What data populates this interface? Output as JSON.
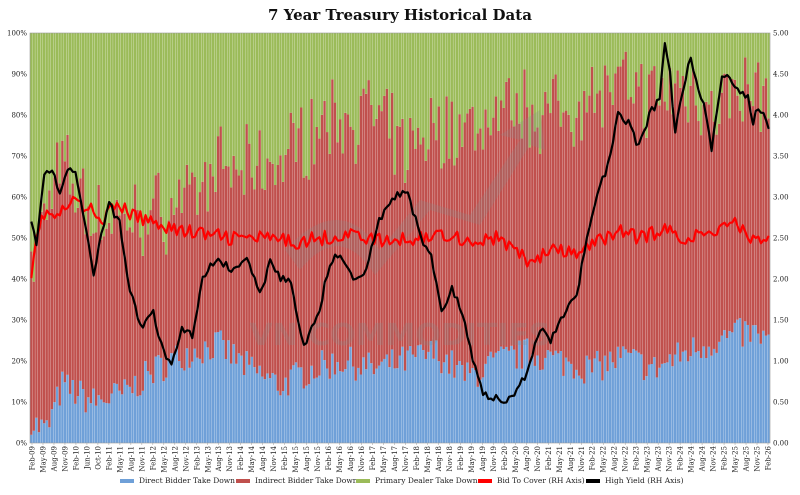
{
  "chart_data": {
    "type": "bar",
    "title": "7 Year Treasury Historical Data",
    "left_axis": {
      "ticks": [
        "0%",
        "10%",
        "20%",
        "30%",
        "40%",
        "50%",
        "60%",
        "70%",
        "80%",
        "90%",
        "100%"
      ],
      "range": [
        0,
        100
      ]
    },
    "right_axis": {
      "ticks": [
        "0.00",
        "0.50",
        "1.00",
        "1.50",
        "2.00",
        "2.50",
        "3.00",
        "3.50",
        "4.00",
        "4.50",
        "5.00"
      ],
      "range": [
        0,
        5
      ]
    },
    "x_tick_labels": [
      "Feb-09",
      "May-09",
      "Aug-09",
      "Nov-09",
      "Feb-10",
      "Jun-10",
      "Oct-10",
      "Feb-11",
      "May-11",
      "Aug-11",
      "Nov-11",
      "Feb-12",
      "May-12",
      "Aug-12",
      "Nov-12",
      "Feb-13",
      "May-13",
      "Aug-13",
      "Nov-13",
      "Feb-14",
      "May-14",
      "Aug-14",
      "Nov-14",
      "Feb-15",
      "May-15",
      "Aug-15",
      "Nov-15",
      "Feb-16",
      "May-16",
      "Aug-16",
      "Nov-16",
      "Feb-17",
      "May-17",
      "Aug-17",
      "Nov-17",
      "Feb-18",
      "May-18",
      "Aug-18",
      "Nov-18",
      "Feb-19",
      "May-19",
      "Aug-19",
      "Nov-19",
      "Feb-20",
      "May-20",
      "Aug-20",
      "Nov-20",
      "Feb-21",
      "May-21",
      "Aug-21",
      "Nov-21",
      "Feb-22",
      "May-22",
      "Aug-22",
      "Nov-22",
      "Feb-23",
      "May-23",
      "Aug-23",
      "Nov-23",
      "Feb-24",
      "May-24",
      "Aug-24",
      "Nov-24",
      "Feb-25",
      "May-25",
      "Aug-25",
      "Nov-25",
      "Feb-26"
    ],
    "watermark": "VN COMMODITIES",
    "legend": [
      {
        "label": "Direct Bidder Take Down",
        "color": "#6fa0d8"
      },
      {
        "label": "Indirect Bidder Take Down",
        "color": "#c0504d"
      },
      {
        "label": "Primary Dealer Take Down",
        "color": "#9bbb59"
      },
      {
        "label": "Bid To Cover (RH Axis)",
        "color": "#ff0000"
      },
      {
        "label": "High Yield (RH Axis)",
        "color": "#000000"
      }
    ],
    "series": {
      "direct_pct_anchors": [
        [
          0,
          5
        ],
        [
          6,
          3
        ],
        [
          12,
          14
        ],
        [
          24,
          10
        ],
        [
          36,
          12
        ],
        [
          48,
          18
        ],
        [
          60,
          22
        ],
        [
          72,
          24
        ],
        [
          84,
          18
        ],
        [
          96,
          14
        ],
        [
          108,
          18
        ],
        [
          120,
          20
        ],
        [
          132,
          18
        ],
        [
          144,
          20
        ],
        [
          156,
          22
        ],
        [
          168,
          16
        ],
        [
          180,
          20
        ],
        [
          192,
          22
        ],
        [
          204,
          20
        ],
        [
          216,
          18
        ],
        [
          228,
          21
        ],
        [
          240,
          18
        ],
        [
          252,
          22
        ],
        [
          264,
          25
        ],
        [
          276,
          27
        ],
        [
          284,
          25
        ]
      ],
      "indirect_pct_anchors": [
        [
          0,
          38
        ],
        [
          4,
          50
        ],
        [
          8,
          56
        ],
        [
          14,
          52
        ],
        [
          24,
          45
        ],
        [
          36,
          42
        ],
        [
          48,
          38
        ],
        [
          60,
          38
        ],
        [
          72,
          42
        ],
        [
          84,
          48
        ],
        [
          96,
          55
        ],
        [
          108,
          58
        ],
        [
          120,
          60
        ],
        [
          132,
          62
        ],
        [
          144,
          50
        ],
        [
          156,
          55
        ],
        [
          168,
          60
        ],
        [
          180,
          60
        ],
        [
          192,
          60
        ],
        [
          204,
          60
        ],
        [
          216,
          68
        ],
        [
          228,
          65
        ],
        [
          240,
          66
        ],
        [
          252,
          65
        ],
        [
          264,
          58
        ],
        [
          276,
          58
        ],
        [
          284,
          60
        ]
      ],
      "bid_to_cover_anchors": [
        [
          0,
          2.1
        ],
        [
          2,
          2.55
        ],
        [
          5,
          2.8
        ],
        [
          10,
          2.75
        ],
        [
          16,
          2.95
        ],
        [
          22,
          2.85
        ],
        [
          28,
          2.75
        ],
        [
          34,
          2.9
        ],
        [
          40,
          2.75
        ],
        [
          48,
          2.7
        ],
        [
          56,
          2.6
        ],
        [
          66,
          2.55
        ],
        [
          76,
          2.5
        ],
        [
          88,
          2.5
        ],
        [
          100,
          2.45
        ],
        [
          112,
          2.5
        ],
        [
          124,
          2.55
        ],
        [
          136,
          2.45
        ],
        [
          148,
          2.5
        ],
        [
          160,
          2.55
        ],
        [
          170,
          2.45
        ],
        [
          180,
          2.5
        ],
        [
          186,
          2.35
        ],
        [
          192,
          2.2
        ],
        [
          200,
          2.35
        ],
        [
          210,
          2.3
        ],
        [
          218,
          2.45
        ],
        [
          226,
          2.6
        ],
        [
          234,
          2.5
        ],
        [
          244,
          2.6
        ],
        [
          252,
          2.5
        ],
        [
          262,
          2.55
        ],
        [
          270,
          2.75
        ],
        [
          276,
          2.5
        ],
        [
          284,
          2.5
        ]
      ],
      "high_yield_anchors": [
        [
          0,
          2.75
        ],
        [
          2,
          2.4
        ],
        [
          5,
          3.3
        ],
        [
          8,
          3.35
        ],
        [
          11,
          3.0
        ],
        [
          14,
          3.3
        ],
        [
          17,
          3.3
        ],
        [
          20,
          2.8
        ],
        [
          24,
          2.0
        ],
        [
          27,
          2.6
        ],
        [
          30,
          2.9
        ],
        [
          34,
          2.7
        ],
        [
          37,
          2.0
        ],
        [
          42,
          1.4
        ],
        [
          47,
          1.6
        ],
        [
          50,
          1.2
        ],
        [
          54,
          0.95
        ],
        [
          58,
          1.4
        ],
        [
          62,
          1.3
        ],
        [
          66,
          2.0
        ],
        [
          70,
          2.2
        ],
        [
          74,
          2.2
        ],
        [
          78,
          2.1
        ],
        [
          83,
          2.3
        ],
        [
          88,
          1.8
        ],
        [
          92,
          2.2
        ],
        [
          96,
          2.0
        ],
        [
          100,
          1.95
        ],
        [
          105,
          1.2
        ],
        [
          110,
          1.5
        ],
        [
          115,
          2.2
        ],
        [
          119,
          2.3
        ],
        [
          124,
          2.0
        ],
        [
          128,
          2.05
        ],
        [
          134,
          2.7
        ],
        [
          140,
          3.0
        ],
        [
          145,
          3.05
        ],
        [
          150,
          2.5
        ],
        [
          154,
          2.3
        ],
        [
          158,
          1.6
        ],
        [
          162,
          1.9
        ],
        [
          166,
          1.6
        ],
        [
          170,
          1.0
        ],
        [
          174,
          0.6
        ],
        [
          178,
          0.55
        ],
        [
          182,
          0.5
        ],
        [
          186,
          0.6
        ],
        [
          190,
          0.8
        ],
        [
          196,
          1.4
        ],
        [
          200,
          1.25
        ],
        [
          206,
          1.6
        ],
        [
          210,
          1.8
        ],
        [
          214,
          2.5
        ],
        [
          218,
          3.0
        ],
        [
          222,
          3.4
        ],
        [
          226,
          4.0
        ],
        [
          230,
          3.9
        ],
        [
          234,
          3.6
        ],
        [
          238,
          4.0
        ],
        [
          242,
          4.2
        ],
        [
          244,
          4.85
        ],
        [
          246,
          4.5
        ],
        [
          248,
          3.8
        ],
        [
          250,
          4.2
        ],
        [
          254,
          4.7
        ],
        [
          256,
          4.4
        ],
        [
          258,
          4.2
        ],
        [
          260,
          4.0
        ],
        [
          262,
          3.6
        ],
        [
          266,
          4.5
        ],
        [
          268,
          4.5
        ],
        [
          272,
          4.3
        ],
        [
          276,
          4.2
        ],
        [
          278,
          3.9
        ],
        [
          280,
          4.1
        ],
        [
          282,
          4.0
        ],
        [
          284,
          3.85
        ]
      ]
    }
  }
}
